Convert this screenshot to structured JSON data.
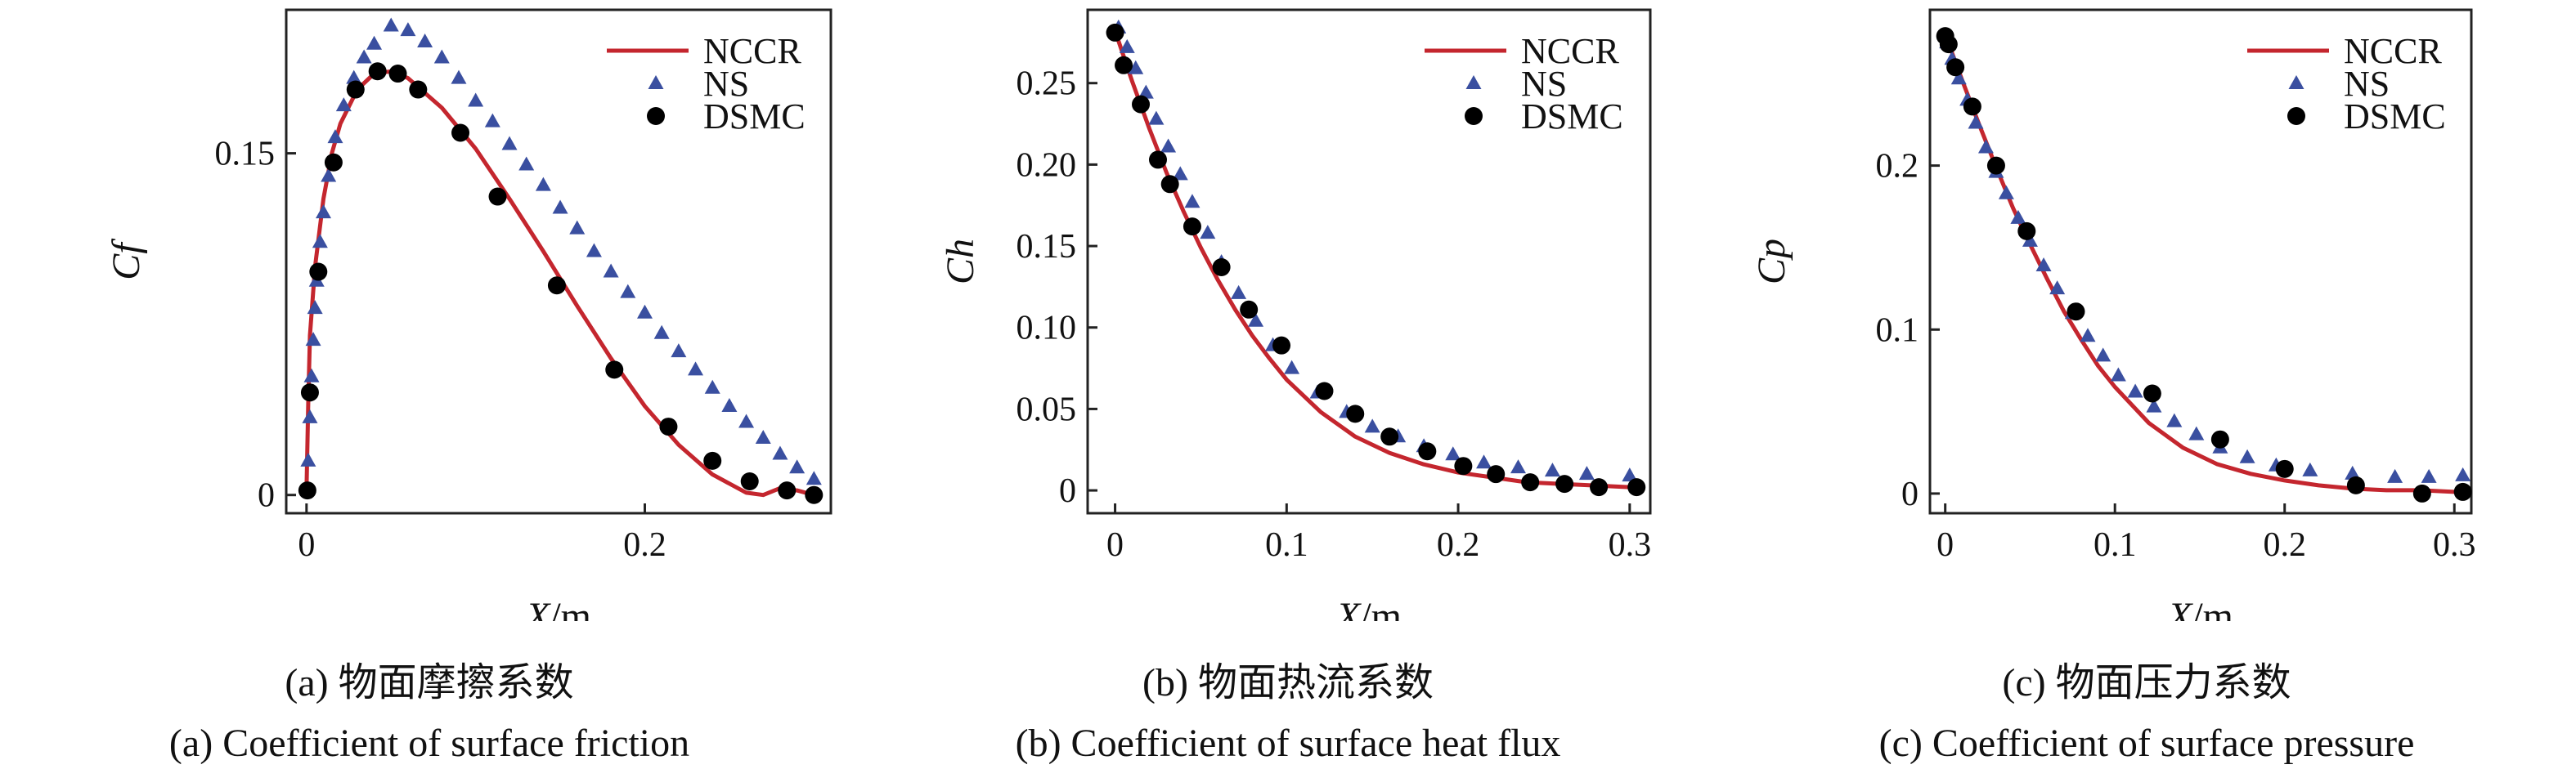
{
  "colors": {
    "nccr": "#c4262e",
    "ns": "#3a4fa0",
    "dsmc": "#000000"
  },
  "chart_data": [
    {
      "type": "line",
      "caption_cn": "(a) 物面摩擦系数",
      "caption_en": "(a) Coefficient of surface friction",
      "xlabel_var": "X",
      "xlabel_unit": "/m",
      "ylabel": "Cf",
      "xlim": [
        -0.012,
        0.31
      ],
      "ylim": [
        -0.008,
        0.213
      ],
      "xticks": [
        0,
        0.2
      ],
      "xtick_labels": [
        "0",
        "0.2"
      ],
      "yticks": [
        0,
        0.15
      ],
      "ytick_labels": [
        "0",
        "0.15"
      ],
      "legend": [
        "NCCR",
        "NS",
        "DSMC"
      ],
      "series": [
        {
          "name": "NCCR",
          "style": "line",
          "x": [
            0,
            0.001,
            0.002,
            0.005,
            0.01,
            0.015,
            0.02,
            0.03,
            0.04,
            0.05,
            0.06,
            0.08,
            0.1,
            0.12,
            0.14,
            0.16,
            0.18,
            0.2,
            0.22,
            0.24,
            0.26,
            0.27,
            0.28,
            0.29,
            0.3
          ],
          "y": [
            0.002,
            0.04,
            0.07,
            0.1,
            0.13,
            0.15,
            0.163,
            0.178,
            0.185,
            0.186,
            0.183,
            0.17,
            0.152,
            0.13,
            0.107,
            0.083,
            0.06,
            0.039,
            0.022,
            0.009,
            0.001,
            0.0,
            0.003,
            0.002,
            0.0
          ]
        },
        {
          "name": "NS",
          "style": "triangle",
          "x": [
            0.001,
            0.002,
            0.003,
            0.004,
            0.005,
            0.006,
            0.008,
            0.01,
            0.013,
            0.017,
            0.022,
            0.028,
            0.034,
            0.04,
            0.05,
            0.06,
            0.07,
            0.08,
            0.09,
            0.1,
            0.11,
            0.12,
            0.13,
            0.14,
            0.15,
            0.16,
            0.17,
            0.18,
            0.19,
            0.2,
            0.21,
            0.22,
            0.23,
            0.24,
            0.25,
            0.26,
            0.27,
            0.28,
            0.29,
            0.3
          ],
          "y": [
            0.015,
            0.034,
            0.052,
            0.068,
            0.082,
            0.094,
            0.111,
            0.124,
            0.14,
            0.157,
            0.171,
            0.183,
            0.192,
            0.198,
            0.206,
            0.204,
            0.199,
            0.192,
            0.183,
            0.173,
            0.164,
            0.154,
            0.145,
            0.136,
            0.126,
            0.117,
            0.107,
            0.098,
            0.089,
            0.08,
            0.071,
            0.063,
            0.055,
            0.047,
            0.039,
            0.032,
            0.025,
            0.018,
            0.012,
            0.007
          ]
        },
        {
          "name": "DSMC",
          "style": "circle",
          "x": [
            0.0005,
            0.002,
            0.007,
            0.016,
            0.029,
            0.042,
            0.054,
            0.066,
            0.091,
            0.113,
            0.148,
            0.182,
            0.214,
            0.24,
            0.262,
            0.284,
            0.3
          ],
          "y": [
            0.002,
            0.045,
            0.098,
            0.146,
            0.178,
            0.186,
            0.185,
            0.178,
            0.159,
            0.131,
            0.092,
            0.055,
            0.03,
            0.015,
            0.006,
            0.002,
            0.0
          ]
        }
      ]
    },
    {
      "type": "line",
      "caption_cn": "(b) 物面热流系数",
      "caption_en": "(b) Coefficient of surface heat flux",
      "xlabel_var": "X",
      "xlabel_unit": "/m",
      "ylabel": "Ch",
      "xlim": [
        -0.016,
        0.312
      ],
      "ylim": [
        -0.014,
        0.295
      ],
      "xticks": [
        0,
        0.1,
        0.2,
        0.3
      ],
      "xtick_labels": [
        "0",
        "0.1",
        "0.2",
        "0.3"
      ],
      "yticks": [
        0,
        0.05,
        0.1,
        0.15,
        0.2,
        0.25
      ],
      "ytick_labels": [
        "0",
        "0.05",
        "0.10",
        "0.15",
        "0.20",
        "0.25"
      ],
      "legend": [
        "NCCR",
        "NS",
        "DSMC"
      ],
      "series": [
        {
          "name": "NCCR",
          "style": "line",
          "x": [
            0,
            0.01,
            0.02,
            0.03,
            0.04,
            0.05,
            0.06,
            0.07,
            0.08,
            0.09,
            0.1,
            0.12,
            0.14,
            0.16,
            0.18,
            0.2,
            0.22,
            0.24,
            0.26,
            0.28,
            0.3
          ],
          "y": [
            0.282,
            0.251,
            0.222,
            0.195,
            0.171,
            0.149,
            0.129,
            0.111,
            0.095,
            0.081,
            0.068,
            0.048,
            0.033,
            0.023,
            0.016,
            0.011,
            0.008,
            0.005,
            0.004,
            0.003,
            0.002
          ]
        },
        {
          "name": "NS",
          "style": "triangle",
          "x": [
            0.002,
            0.007,
            0.012,
            0.018,
            0.024,
            0.031,
            0.038,
            0.045,
            0.054,
            0.062,
            0.072,
            0.082,
            0.092,
            0.103,
            0.118,
            0.135,
            0.15,
            0.165,
            0.18,
            0.197,
            0.215,
            0.235,
            0.255,
            0.275,
            0.3
          ],
          "y": [
            0.284,
            0.272,
            0.259,
            0.244,
            0.228,
            0.211,
            0.194,
            0.177,
            0.158,
            0.14,
            0.121,
            0.104,
            0.089,
            0.075,
            0.06,
            0.048,
            0.039,
            0.033,
            0.027,
            0.022,
            0.017,
            0.014,
            0.012,
            0.01,
            0.009
          ]
        },
        {
          "name": "DSMC",
          "style": "circle",
          "x": [
            0,
            0.005,
            0.015,
            0.025,
            0.032,
            0.045,
            0.062,
            0.078,
            0.097,
            0.122,
            0.14,
            0.16,
            0.182,
            0.203,
            0.222,
            0.242,
            0.262,
            0.282,
            0.304
          ],
          "y": [
            0.281,
            0.261,
            0.237,
            0.203,
            0.188,
            0.162,
            0.137,
            0.111,
            0.089,
            0.061,
            0.047,
            0.033,
            0.024,
            0.015,
            0.01,
            0.005,
            0.004,
            0.002,
            0.002
          ]
        }
      ]
    },
    {
      "type": "line",
      "caption_cn": "(c) 物面压力系数",
      "caption_en": "(c) Coefficient of surface pressure",
      "xlabel_var": "X",
      "xlabel_unit": "/m",
      "ylabel": "Cp",
      "xlim": [
        -0.009,
        0.31
      ],
      "ylim": [
        -0.012,
        0.295
      ],
      "xticks": [
        0,
        0.1,
        0.2,
        0.3
      ],
      "xtick_labels": [
        "0",
        "0.1",
        "0.2",
        "0.3"
      ],
      "yticks": [
        0,
        0.1,
        0.2
      ],
      "ytick_labels": [
        "0",
        "0.1",
        "0.2"
      ],
      "legend": [
        "NCCR",
        "NS",
        "DSMC"
      ],
      "series": [
        {
          "name": "NCCR",
          "style": "line",
          "x": [
            0,
            0.01,
            0.02,
            0.03,
            0.04,
            0.05,
            0.06,
            0.07,
            0.08,
            0.09,
            0.1,
            0.12,
            0.14,
            0.16,
            0.18,
            0.2,
            0.22,
            0.24,
            0.26,
            0.28,
            0.3
          ],
          "y": [
            0.28,
            0.252,
            0.225,
            0.199,
            0.174,
            0.152,
            0.131,
            0.111,
            0.094,
            0.078,
            0.065,
            0.043,
            0.028,
            0.018,
            0.012,
            0.008,
            0.005,
            0.003,
            0.002,
            0.002,
            0.001
          ]
        },
        {
          "name": "NS",
          "style": "triangle",
          "x": [
            0.001,
            0.004,
            0.008,
            0.013,
            0.018,
            0.024,
            0.03,
            0.036,
            0.043,
            0.05,
            0.058,
            0.066,
            0.075,
            0.084,
            0.093,
            0.102,
            0.112,
            0.123,
            0.135,
            0.148,
            0.162,
            0.178,
            0.195,
            0.215,
            0.24,
            0.265,
            0.285,
            0.305
          ],
          "y": [
            0.275,
            0.265,
            0.253,
            0.24,
            0.226,
            0.211,
            0.196,
            0.183,
            0.168,
            0.154,
            0.139,
            0.125,
            0.11,
            0.096,
            0.084,
            0.072,
            0.062,
            0.053,
            0.044,
            0.036,
            0.028,
            0.022,
            0.017,
            0.014,
            0.012,
            0.01,
            0.01,
            0.011
          ]
        },
        {
          "name": "DSMC",
          "style": "circle",
          "x": [
            0,
            0.002,
            0.006,
            0.016,
            0.03,
            0.048,
            0.077,
            0.122,
            0.162,
            0.2,
            0.242,
            0.281,
            0.305
          ],
          "y": [
            0.279,
            0.274,
            0.26,
            0.236,
            0.2,
            0.16,
            0.111,
            0.061,
            0.033,
            0.015,
            0.005,
            0.0,
            0.001
          ]
        }
      ]
    }
  ]
}
